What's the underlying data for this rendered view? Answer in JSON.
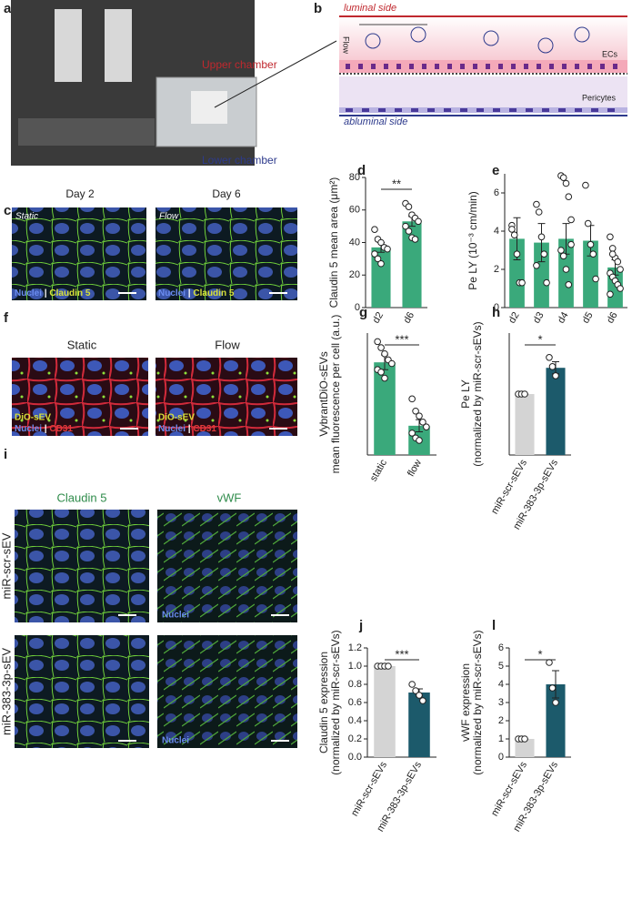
{
  "figure": {
    "a": {
      "label": "a",
      "upper": "Upper chamber",
      "lower": "Lower chamber"
    },
    "b": {
      "label": "b",
      "luminal": "luminal side",
      "flow": "Flow",
      "ecs": "ECs",
      "pericytes": "Pericytes",
      "abluminal": "abluminal side"
    },
    "c": {
      "label": "c",
      "col1": "Day 2",
      "col2": "Day 6",
      "tag1": "Static",
      "tag2": "Flow",
      "stain": [
        "Nuclei",
        "|",
        "Claudin 5"
      ]
    },
    "f": {
      "label": "f",
      "col1": "Static",
      "col2": "Flow",
      "ev": "DiO-sEV",
      "stain": [
        "Nuclei",
        "|",
        "CD31"
      ]
    },
    "i": {
      "label": "i",
      "col1": "Claudin 5",
      "col2": "vWF",
      "row1": "miR-scr-sEV",
      "row2": "miR-383-3p-sEV",
      "nuclei": "Nuclei"
    }
  },
  "chart_data": [
    {
      "type": "bar",
      "panel": "d",
      "ylabel": [
        "Claudin 5 mean area (μm²)"
      ],
      "categories": [
        "d2",
        "d6"
      ],
      "values": [
        37,
        53
      ],
      "errors": [
        3,
        3
      ],
      "points": [
        [
          48,
          42,
          40,
          37,
          36,
          33,
          30,
          27
        ],
        [
          64,
          62,
          57,
          55,
          53,
          50,
          47,
          43,
          42
        ]
      ],
      "colors": [
        "#3aa97b",
        "#3aa97b"
      ],
      "ylim": [
        0,
        80
      ],
      "yticks": [
        0,
        20,
        40,
        60,
        80
      ],
      "significance": "**"
    },
    {
      "type": "bar",
      "panel": "e",
      "ylabel": [
        "Pe LY (10⁻³ cm/min)"
      ],
      "categories": [
        "d2",
        "d3",
        "d4",
        "d5",
        "d6"
      ],
      "values": [
        3.6,
        3.4,
        3.6,
        3.5,
        2.1
      ],
      "errors": [
        1.1,
        1.0,
        0.8,
        0.8,
        0.4
      ],
      "points": [
        [
          4.3,
          3.8,
          2.8,
          1.3,
          1.3,
          4.1
        ],
        [
          5.4,
          5.0,
          3.7,
          2.8,
          1.3,
          2.2
        ],
        [
          6.9,
          6.8,
          6.5,
          5.8,
          4.6,
          3.0,
          2.7,
          2.0,
          1.2,
          3.3
        ],
        [
          6.4,
          4.4,
          3.3,
          2.8,
          1.5
        ],
        [
          3.7,
          3.1,
          2.6,
          2.4,
          2.0,
          1.8,
          1.6,
          1.4,
          1.2,
          1.0,
          0.7,
          2.8
        ]
      ],
      "colors": [
        "#3aa97b",
        "#3aa97b",
        "#3aa97b",
        "#3aa97b",
        "#3aa97b"
      ],
      "ylim": [
        0,
        7
      ],
      "yticks": [
        0,
        2,
        4,
        6
      ]
    },
    {
      "type": "bar",
      "panel": "g",
      "ylabel": [
        "VybrantDiO-sEVs",
        "mean fluorescence per cell (a.u.)"
      ],
      "categories": [
        "static",
        "flow"
      ],
      "values": [
        0.76,
        0.24
      ],
      "errors": [
        0.06,
        0.05
      ],
      "points": [
        [
          0.93,
          0.88,
          0.83,
          0.78,
          0.75,
          0.7,
          0.68,
          0.63
        ],
        [
          0.46,
          0.36,
          0.32,
          0.27,
          0.23,
          0.18,
          0.14,
          0.12
        ]
      ],
      "colors": [
        "#3aa97b",
        "#3aa97b"
      ],
      "ylim": [
        0,
        1
      ],
      "significance": "***"
    },
    {
      "type": "bar",
      "panel": "h",
      "ylabel": [
        "Pe LY",
        "(normalized by miR-scr-sEVs)"
      ],
      "categories": [
        "miR-scr-sEVs",
        "miR-383-3p-sEVs"
      ],
      "values": [
        1.0,
        1.43
      ],
      "errors": [
        0,
        0.1
      ],
      "points": [
        [
          1,
          1,
          1
        ],
        [
          1.6,
          1.45,
          1.3
        ]
      ],
      "colors": [
        "#d4d4d4",
        "#1c5a6b"
      ],
      "ylim": [
        0,
        2
      ],
      "significance": "*"
    },
    {
      "type": "bar",
      "panel": "j",
      "ylabel": [
        "Claudin 5 expression",
        "(normalized by miR-scr-sEVs)"
      ],
      "categories": [
        "miR-scr-sEVs",
        "miR-383-3p-sEVs"
      ],
      "values": [
        1.0,
        0.71
      ],
      "errors": [
        0,
        0.04
      ],
      "points": [
        [
          1,
          1,
          1,
          1
        ],
        [
          0.8,
          0.73,
          0.68,
          0.62
        ]
      ],
      "colors": [
        "#d4d4d4",
        "#1c5a6b"
      ],
      "ylim": [
        0,
        1.2
      ],
      "yticks": [
        {
          "value": 0,
          "label": "0.0"
        },
        0.2,
        0.4,
        0.6,
        0.8,
        {
          "value": 1,
          "label": "1.0"
        },
        1.2
      ],
      "significance": "***"
    },
    {
      "type": "bar",
      "panel": "l",
      "ylabel": [
        "vWF expression",
        "(normalized by miR-scr-sEVs)"
      ],
      "categories": [
        "miR-scr-sEVs",
        "miR-383-3p-sEVs"
      ],
      "values": [
        1,
        4.0
      ],
      "errors": [
        0,
        0.75
      ],
      "points": [
        [
          1,
          1,
          1
        ],
        [
          5.2,
          3.8,
          3.0
        ]
      ],
      "colors": [
        "#d4d4d4",
        "#1c5a6b"
      ],
      "ylim": [
        0,
        6
      ],
      "yticks": [
        0,
        1,
        2,
        3,
        4,
        5,
        6
      ],
      "significance": "*"
    }
  ]
}
